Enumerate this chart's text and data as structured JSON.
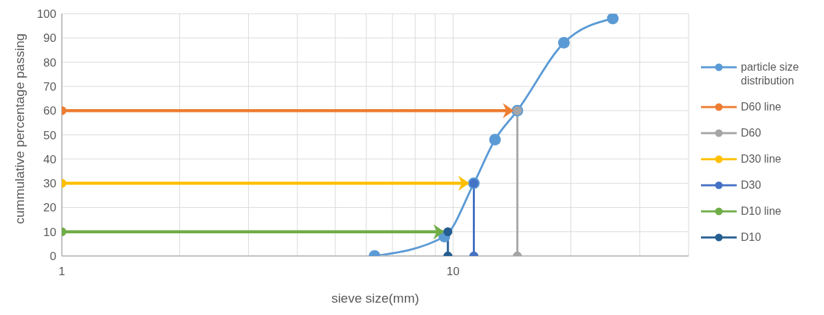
{
  "chart_data": {
    "type": "line",
    "xlabel": "sieve size(mm)",
    "ylabel": "cummulative percentage passing",
    "log": "x",
    "xlim": [
      1,
      40
    ],
    "xticks": [
      1,
      {
        "value": 2,
        "label": null
      },
      {
        "value": 3,
        "label": null
      },
      {
        "value": 4,
        "label": null
      },
      {
        "value": 5,
        "label": null
      },
      {
        "value": 6,
        "label": null
      },
      {
        "value": 7,
        "label": null
      },
      {
        "value": 8,
        "label": null
      },
      {
        "value": 9,
        "label": null
      },
      10,
      {
        "value": 20,
        "label": null
      },
      {
        "value": 30,
        "label": null
      },
      {
        "value": 40,
        "label": null
      }
    ],
    "ylim": [
      0,
      100
    ],
    "yticks": [
      0,
      10,
      20,
      30,
      40,
      50,
      60,
      70,
      80,
      90,
      100
    ],
    "grid": true,
    "legend": "right",
    "marker": "circle",
    "series": [
      {
        "name": "particle size distribution",
        "color": "#5b9bd5",
        "x": [
          6.3,
          9.5,
          11.3,
          12.8,
          14.6,
          19.2,
          25.6
        ],
        "values": [
          0,
          8,
          30,
          48,
          60,
          88,
          98
        ]
      },
      {
        "name": "D60 line",
        "color": "#ed7d31",
        "x": [
          1,
          14.3
        ],
        "values": [
          60,
          60
        ]
      },
      {
        "name": "D60",
        "color": "#a5a5a5",
        "x": [
          14.6,
          14.6
        ],
        "values": [
          0,
          60
        ]
      },
      {
        "name": "D30 line",
        "color": "#ffc000",
        "x": [
          1,
          11
        ],
        "values": [
          30,
          30
        ]
      },
      {
        "name": "D30",
        "color": "#4472c4",
        "x": [
          11.3,
          11.3
        ],
        "values": [
          0,
          30
        ]
      },
      {
        "name": "D10 line",
        "color": "#70ad47",
        "x": [
          1,
          9.5
        ],
        "values": [
          10,
          10
        ]
      },
      {
        "name": "D10",
        "color": "#255e91",
        "x": [
          9.7,
          9.7
        ],
        "values": [
          0,
          10
        ]
      }
    ]
  }
}
